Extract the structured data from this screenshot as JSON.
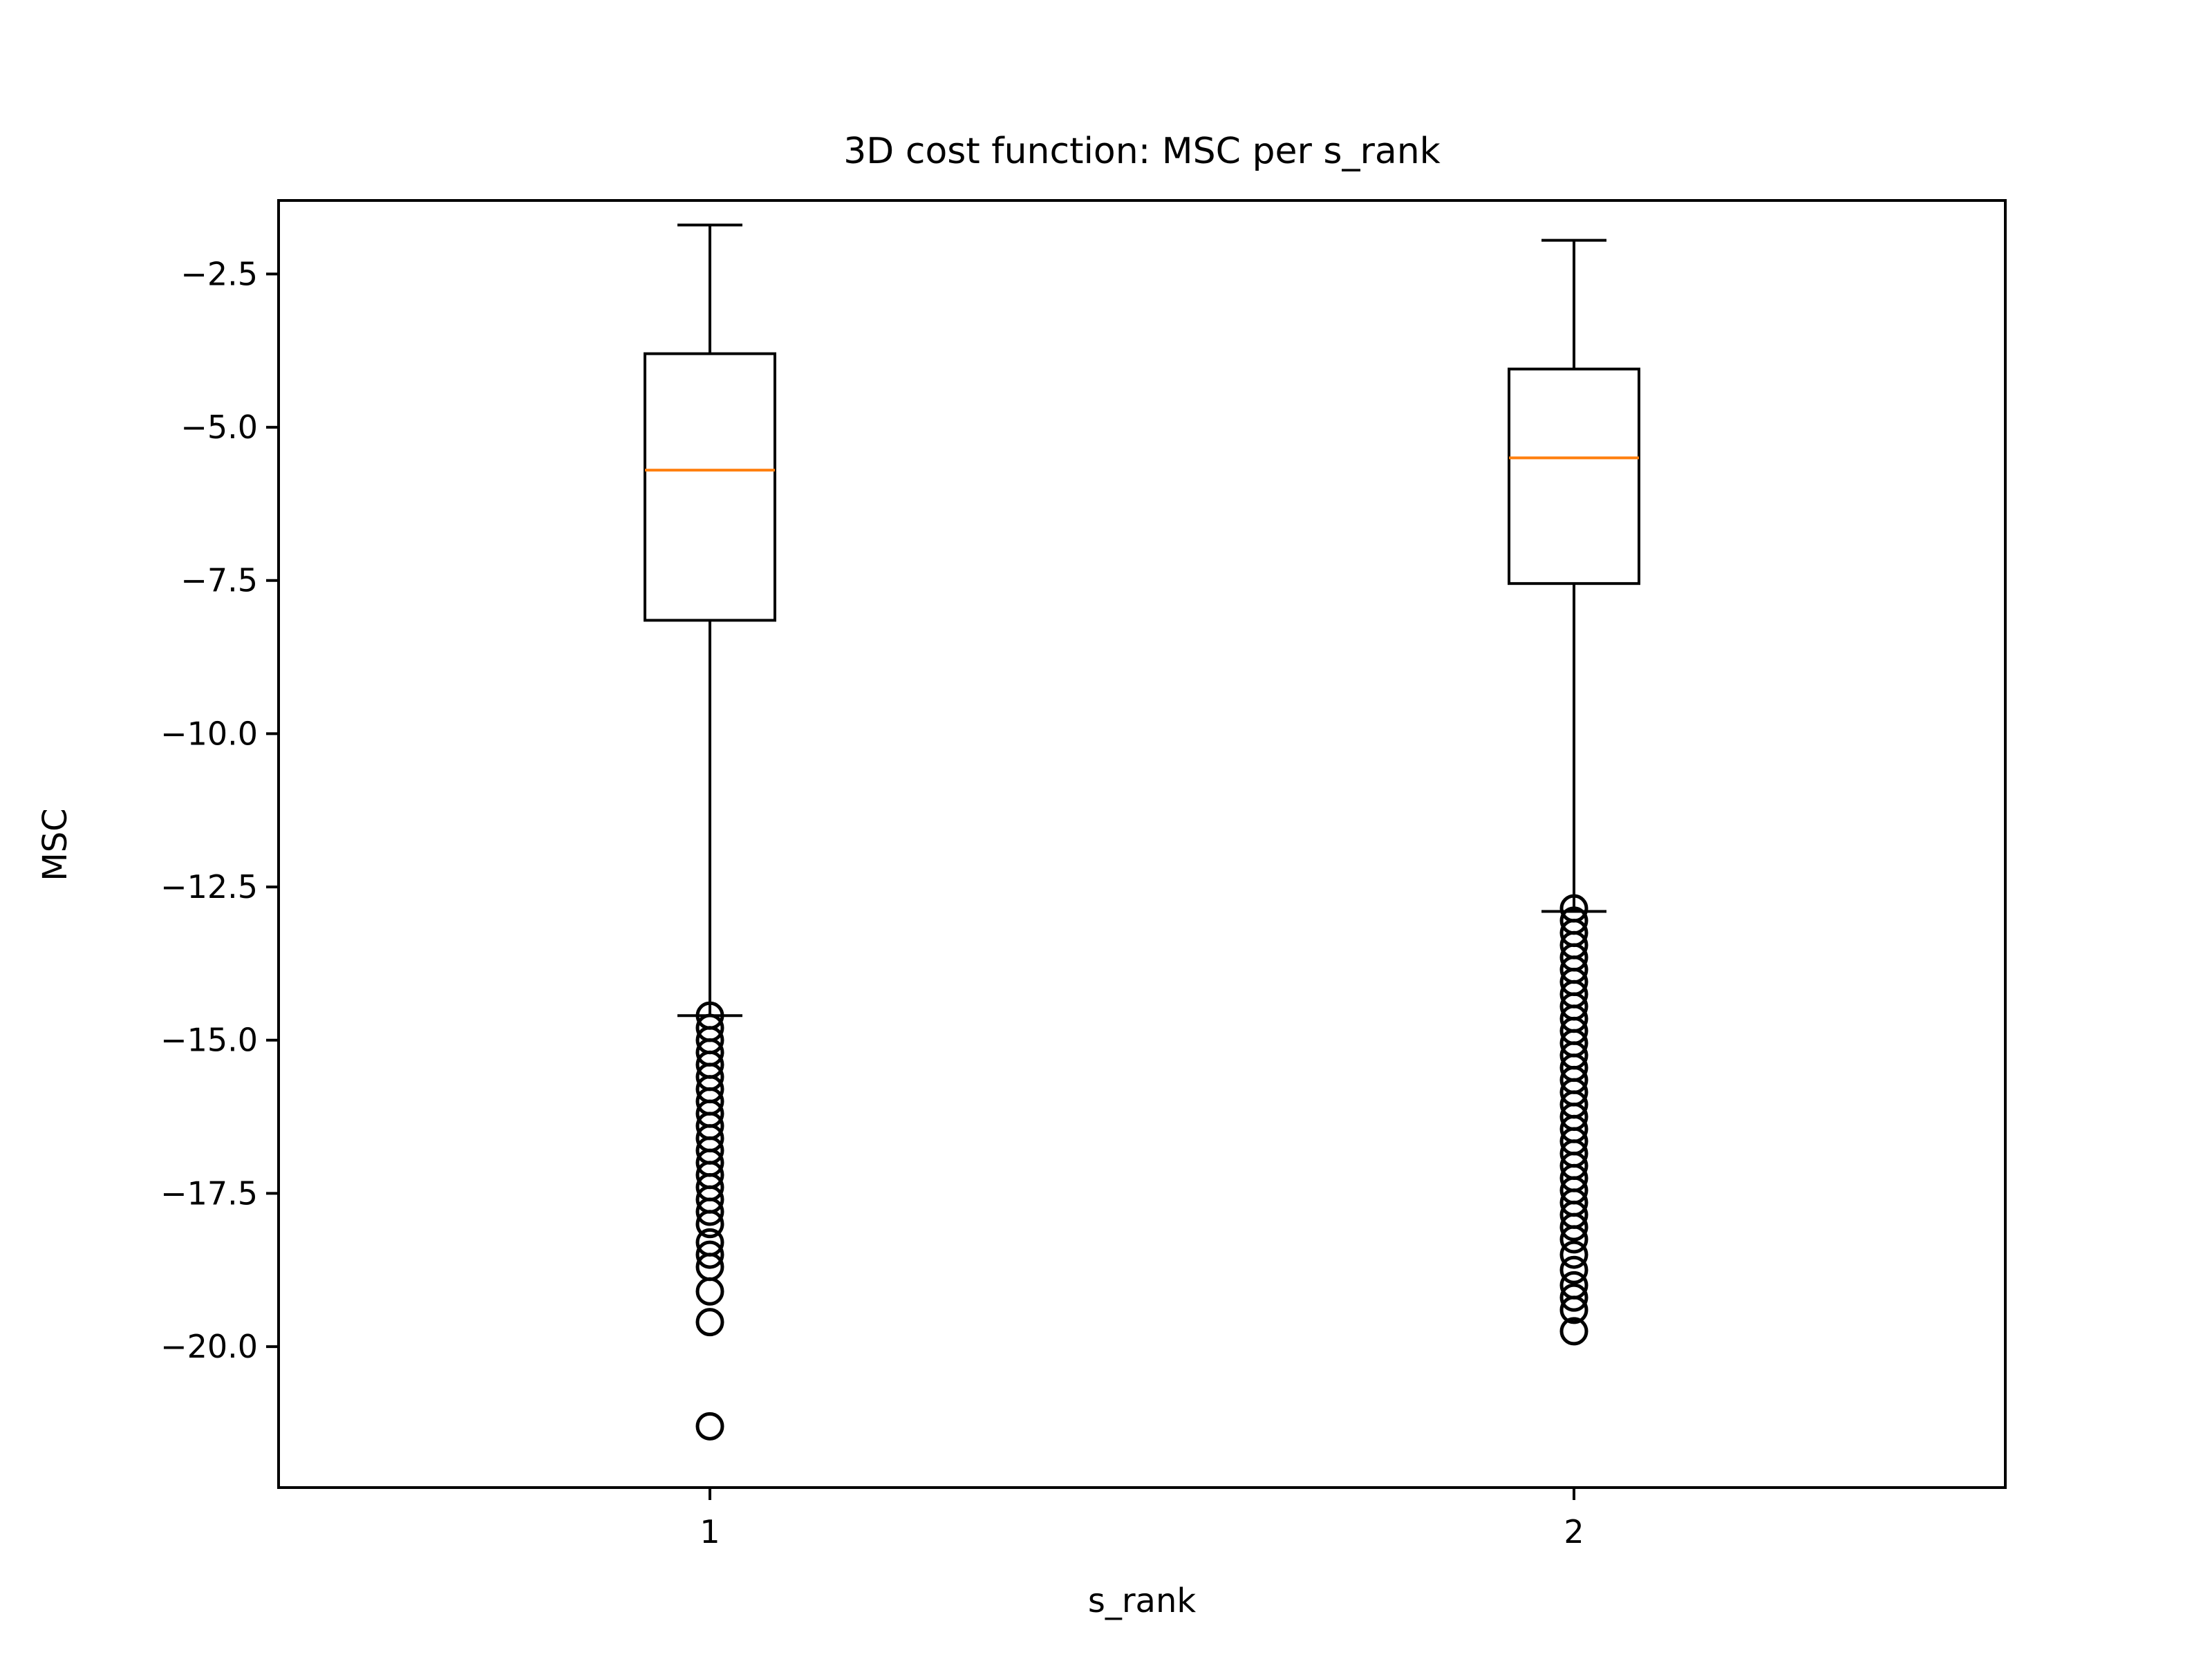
{
  "chart_data": {
    "type": "box",
    "title": "3D cost function: MSC per s_rank",
    "xlabel": "s_rank",
    "ylabel": "MSC",
    "categories": [
      "1",
      "2"
    ],
    "ylim": [
      -22.3,
      -1.3
    ],
    "yticks": [
      -2.5,
      -5.0,
      -7.5,
      -10.0,
      -12.5,
      -15.0,
      -17.5,
      -20.0
    ],
    "ytick_labels": [
      "−2.5",
      "−5.0",
      "−7.5",
      "−10.0",
      "−12.5",
      "−15.0",
      "−17.5",
      "−20.0"
    ],
    "boxes": [
      {
        "category": "1",
        "whisker_high": -1.7,
        "q3": -3.8,
        "median": -5.7,
        "q1": -8.15,
        "whisker_low": -14.6,
        "outliers": [
          -14.6,
          -14.8,
          -15.0,
          -15.2,
          -15.4,
          -15.6,
          -15.8,
          -16.0,
          -16.2,
          -16.4,
          -16.6,
          -16.8,
          -17.0,
          -17.2,
          -17.4,
          -17.6,
          -17.8,
          -18.0,
          -18.3,
          -18.5,
          -18.7,
          -19.1,
          -19.6,
          -21.3
        ]
      },
      {
        "category": "2",
        "whisker_high": -1.95,
        "q3": -4.05,
        "median": -5.5,
        "q1": -7.55,
        "whisker_low": -12.9,
        "outliers": [
          -12.85,
          -13.05,
          -13.25,
          -13.45,
          -13.65,
          -13.85,
          -14.05,
          -14.25,
          -14.45,
          -14.65,
          -14.85,
          -15.05,
          -15.25,
          -15.45,
          -15.65,
          -15.85,
          -16.05,
          -16.25,
          -16.45,
          -16.65,
          -16.85,
          -17.05,
          -17.25,
          -17.45,
          -17.65,
          -17.85,
          -18.05,
          -18.25,
          -18.5,
          -18.75,
          -19.0,
          -19.2,
          -19.4,
          -19.75
        ]
      }
    ],
    "colors": {
      "box": "#000000",
      "median": "#ff7f0e"
    },
    "grid": false
  }
}
